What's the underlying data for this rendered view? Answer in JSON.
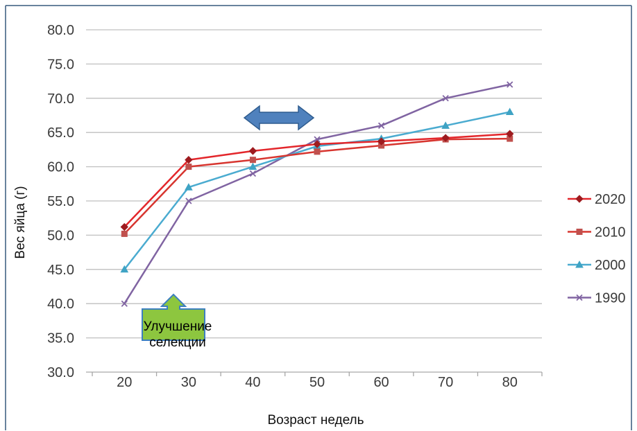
{
  "chart_data": {
    "type": "line",
    "xlabel": "Возраст недель",
    "ylabel": "Вес яйца (г)",
    "categories": [
      "20",
      "30",
      "40",
      "50",
      "60",
      "70",
      "80"
    ],
    "yticks": [
      "80.0",
      "75.0",
      "70.0",
      "65.0",
      "60.0",
      "55.0",
      "50.0",
      "45.0",
      "40.0",
      "35.0",
      "30.0"
    ],
    "ylim": [
      30,
      80
    ],
    "grid": true,
    "legend": "right",
    "series": [
      {
        "name": "2020",
        "values": [
          51.2,
          61.0,
          62.3,
          63.3,
          63.7,
          64.2,
          64.8
        ],
        "color": "#E3262B",
        "marker": "diamond",
        "marker_color": "#9E1B1F"
      },
      {
        "name": "2010",
        "values": [
          50.2,
          60.0,
          61.0,
          62.2,
          63.1,
          64.0,
          64.1
        ],
        "color": "#D7352F",
        "marker": "square",
        "marker_color": "#C0504D"
      },
      {
        "name": "2000",
        "values": [
          45.0,
          57.0,
          60.0,
          63.0,
          64.1,
          66.0,
          68.0
        ],
        "color": "#4AABD0",
        "marker": "triangle",
        "marker_color": "#3FA3C4"
      },
      {
        "name": "1990",
        "values": [
          40.0,
          55.0,
          59.0,
          64.0,
          66.0,
          70.0,
          72.0
        ],
        "color": "#8064A2",
        "marker": "x",
        "marker_color": "#8064A2"
      }
    ],
    "annotations": [
      {
        "icon": "double-arrow-icon",
        "color": "#4F81BD",
        "border_color": "#2E5C8F"
      },
      {
        "icon": "up-arrow-callout-icon",
        "color": "#8DC63F",
        "border_color": "#3C7FC0",
        "text_lines": [
          "Улучшение",
          "селекции"
        ]
      }
    ]
  },
  "colors": {
    "frame": "#37587D",
    "gridline": "#BFBFBF"
  }
}
